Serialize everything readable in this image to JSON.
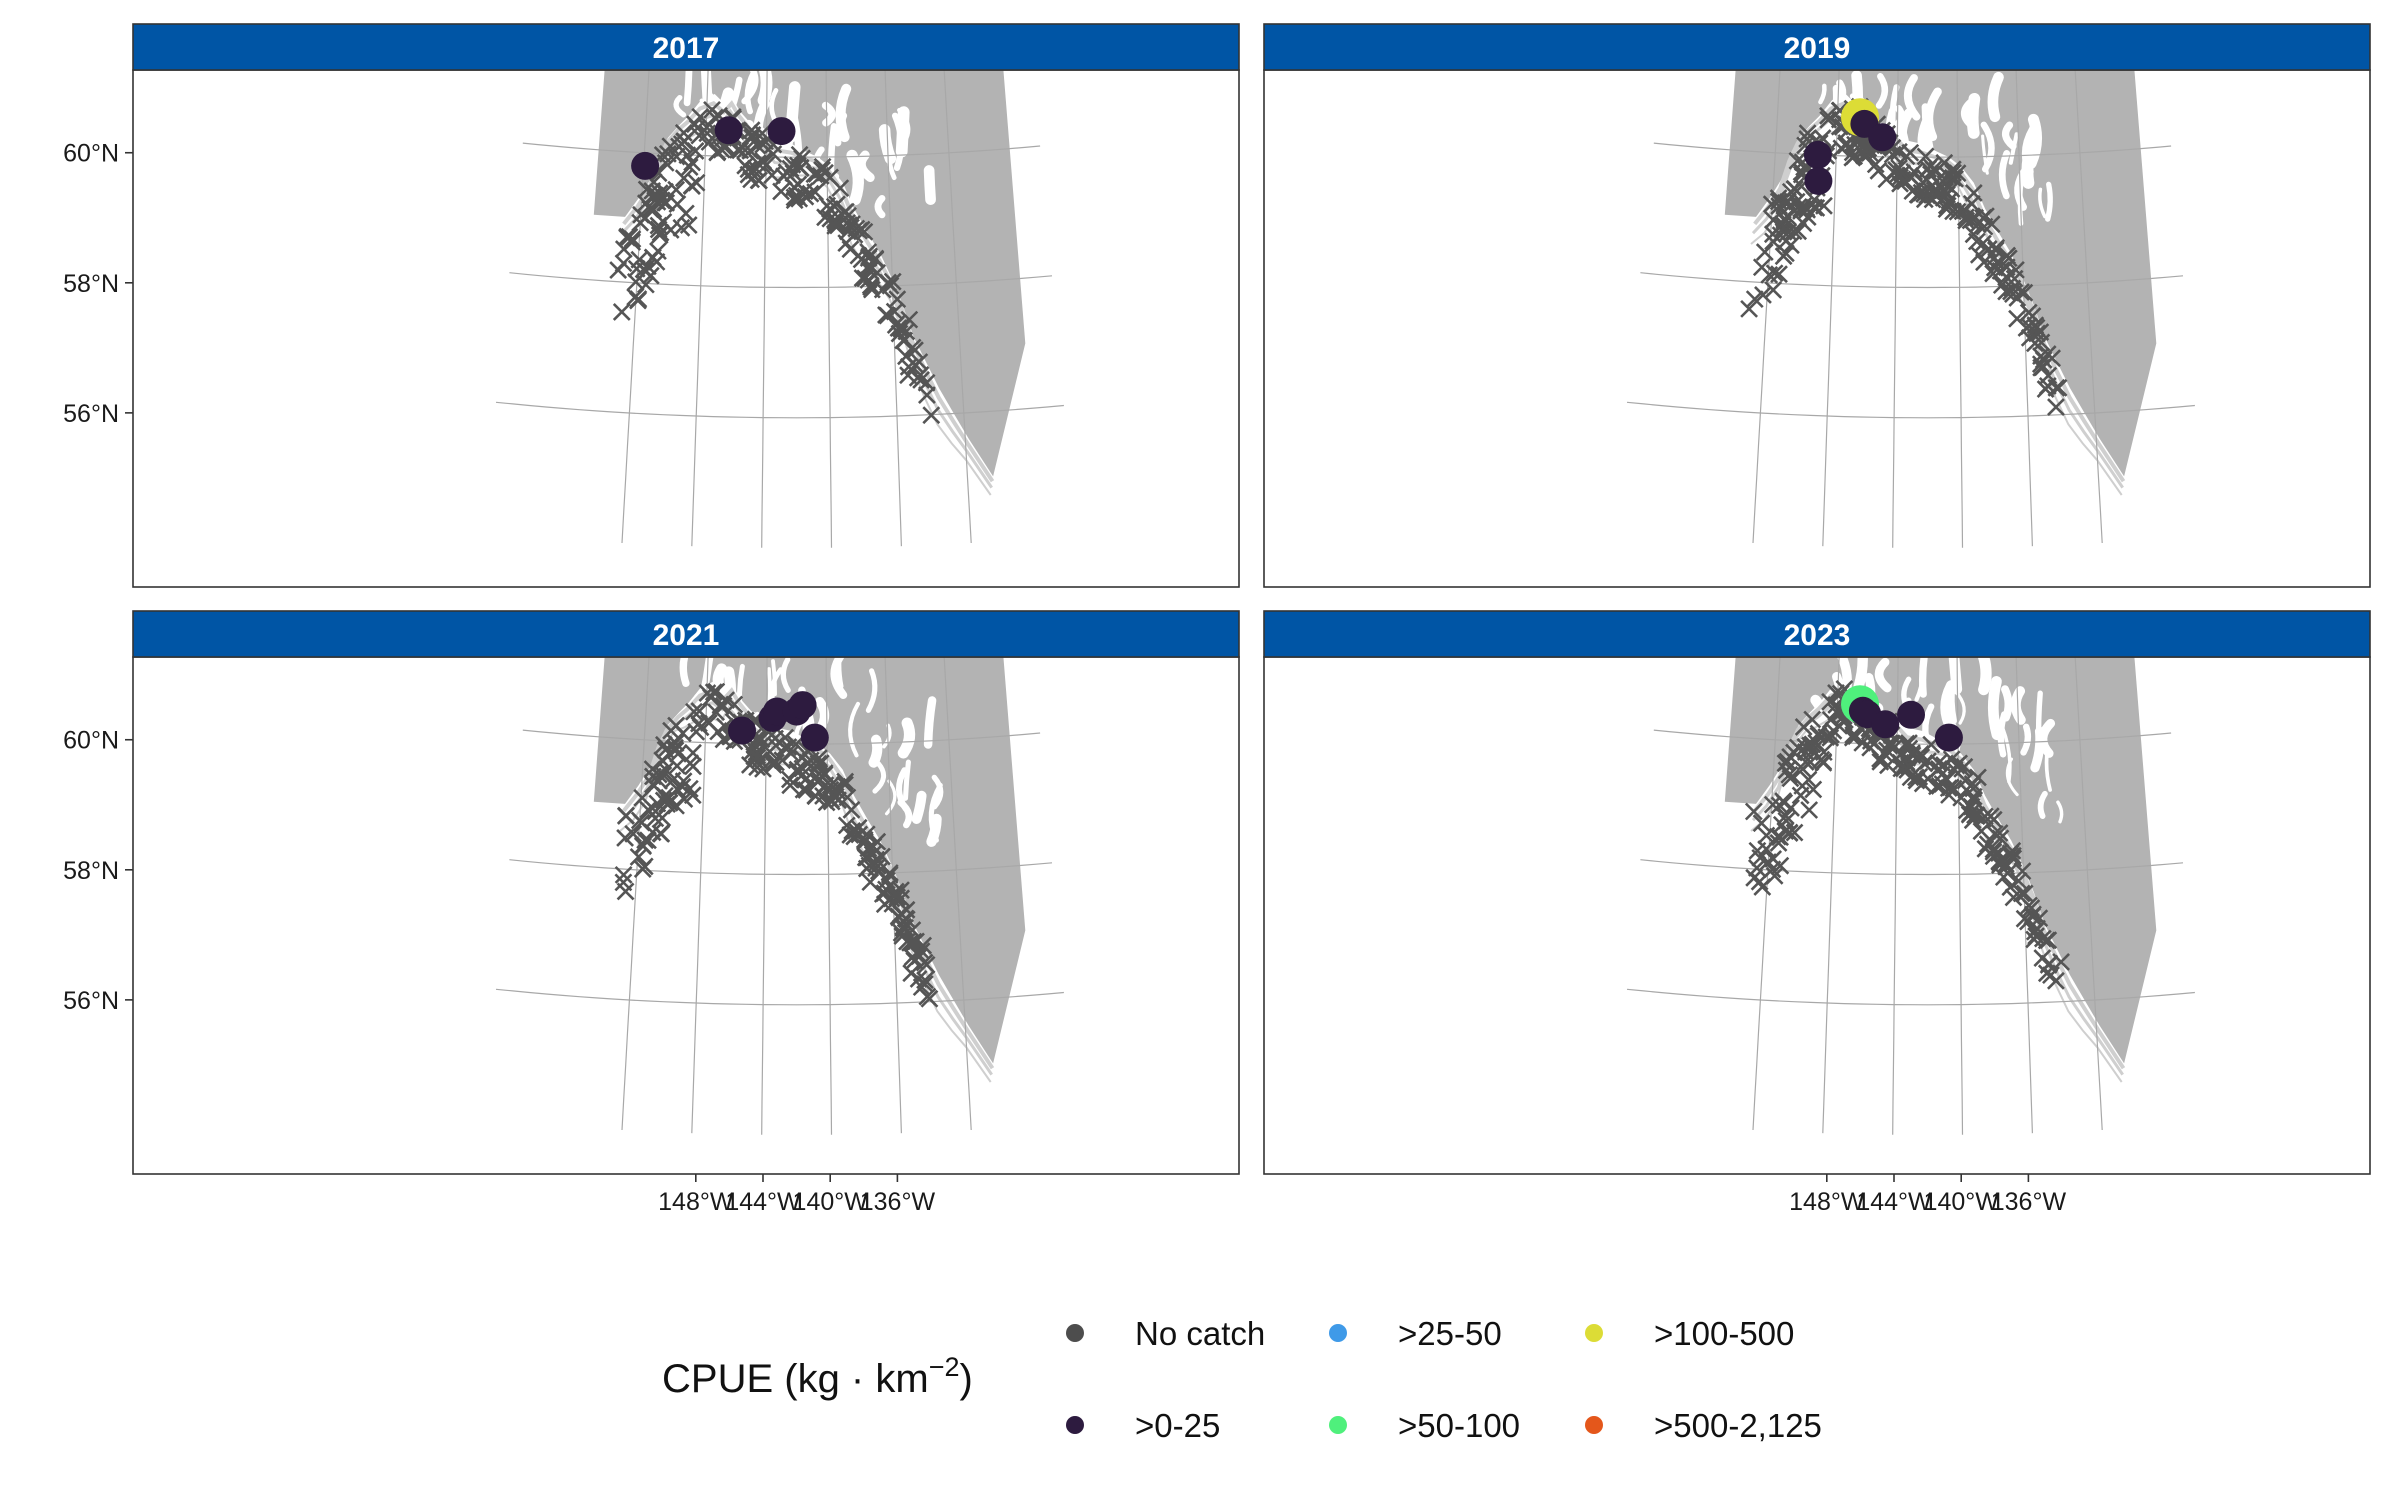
{
  "panels": [
    {
      "year": "2017",
      "catches": [
        {
          "lon": -151.9,
          "lat": 59.8,
          "class": "0-25"
        },
        {
          "lon": -146.5,
          "lat": 60.4,
          "class": "0-25"
        },
        {
          "lon": -143.0,
          "lat": 60.4,
          "class": "0-25"
        }
      ],
      "no_catch_count": 230
    },
    {
      "year": "2019",
      "catches": [
        {
          "lon": -149.2,
          "lat": 60.0,
          "class": "0-25"
        },
        {
          "lon": -149.1,
          "lat": 59.6,
          "class": "0-25"
        },
        {
          "lon": -146.5,
          "lat": 60.6,
          "class": "100-500"
        },
        {
          "lon": -146.2,
          "lat": 60.5,
          "class": "0-25"
        },
        {
          "lon": -145.0,
          "lat": 60.3,
          "class": "0-25"
        }
      ],
      "no_catch_count": 250
    },
    {
      "year": "2021",
      "catches": [
        {
          "lon": -145.6,
          "lat": 60.2,
          "class": "0-25"
        },
        {
          "lon": -143.6,
          "lat": 60.4,
          "class": "0-25"
        },
        {
          "lon": -143.3,
          "lat": 60.5,
          "class": "0-25"
        },
        {
          "lon": -142.0,
          "lat": 60.5,
          "class": "0-25"
        },
        {
          "lon": -141.6,
          "lat": 60.6,
          "class": "0-25"
        },
        {
          "lon": -140.8,
          "lat": 60.1,
          "class": "0-25"
        }
      ],
      "no_catch_count": 240
    },
    {
      "year": "2023",
      "catches": [
        {
          "lon": -146.5,
          "lat": 60.6,
          "class": "50-100"
        },
        {
          "lon": -146.3,
          "lat": 60.5,
          "class": "0-25"
        },
        {
          "lon": -146.0,
          "lat": 60.45,
          "class": "0-25"
        },
        {
          "lon": -144.8,
          "lat": 60.3,
          "class": "0-25"
        },
        {
          "lon": -143.1,
          "lat": 60.45,
          "class": "0-25"
        },
        {
          "lon": -140.6,
          "lat": 60.1,
          "class": "0-25"
        }
      ],
      "no_catch_count": 230
    }
  ],
  "axes": {
    "x_ticks": [
      "148°W",
      "144°W",
      "140°W",
      "136°W"
    ],
    "x_tick_lons": [
      -148,
      -144,
      -140,
      -136
    ],
    "y_ticks": [
      "56°N",
      "58°N",
      "60°N"
    ],
    "y_tick_lats": [
      56,
      58,
      60
    ],
    "extent": {
      "lon_min": -152,
      "lon_max": -132,
      "lat_min": 55.8,
      "lat_max": 61.0
    }
  },
  "legend": {
    "title": "CPUE (kg · km",
    "title_exponent": "−2",
    "title_close": ")",
    "items": [
      {
        "key": "none",
        "label": "No catch",
        "color": "#4d4d4d"
      },
      {
        "key": "0-25",
        "label": ">0-25",
        "color": "#2d1b3f"
      },
      {
        "key": "25-50",
        "label": ">25-50",
        "color": "#3f9ae8"
      },
      {
        "key": "50-100",
        "label": ">50-100",
        "color": "#4ff07c"
      },
      {
        "key": "100-500",
        "label": ">100-500",
        "color": "#dcdc36"
      },
      {
        "key": "500-2125",
        "label": ">500-2,125",
        "color": "#e4571b"
      }
    ]
  },
  "colors": {
    "strip": "#0055a5",
    "land": "#b3b3b3",
    "water": "#ffffff",
    "contour": "#cfcfcf",
    "graticule": "#a8a8a8",
    "no_catch_marker": "#555555"
  }
}
